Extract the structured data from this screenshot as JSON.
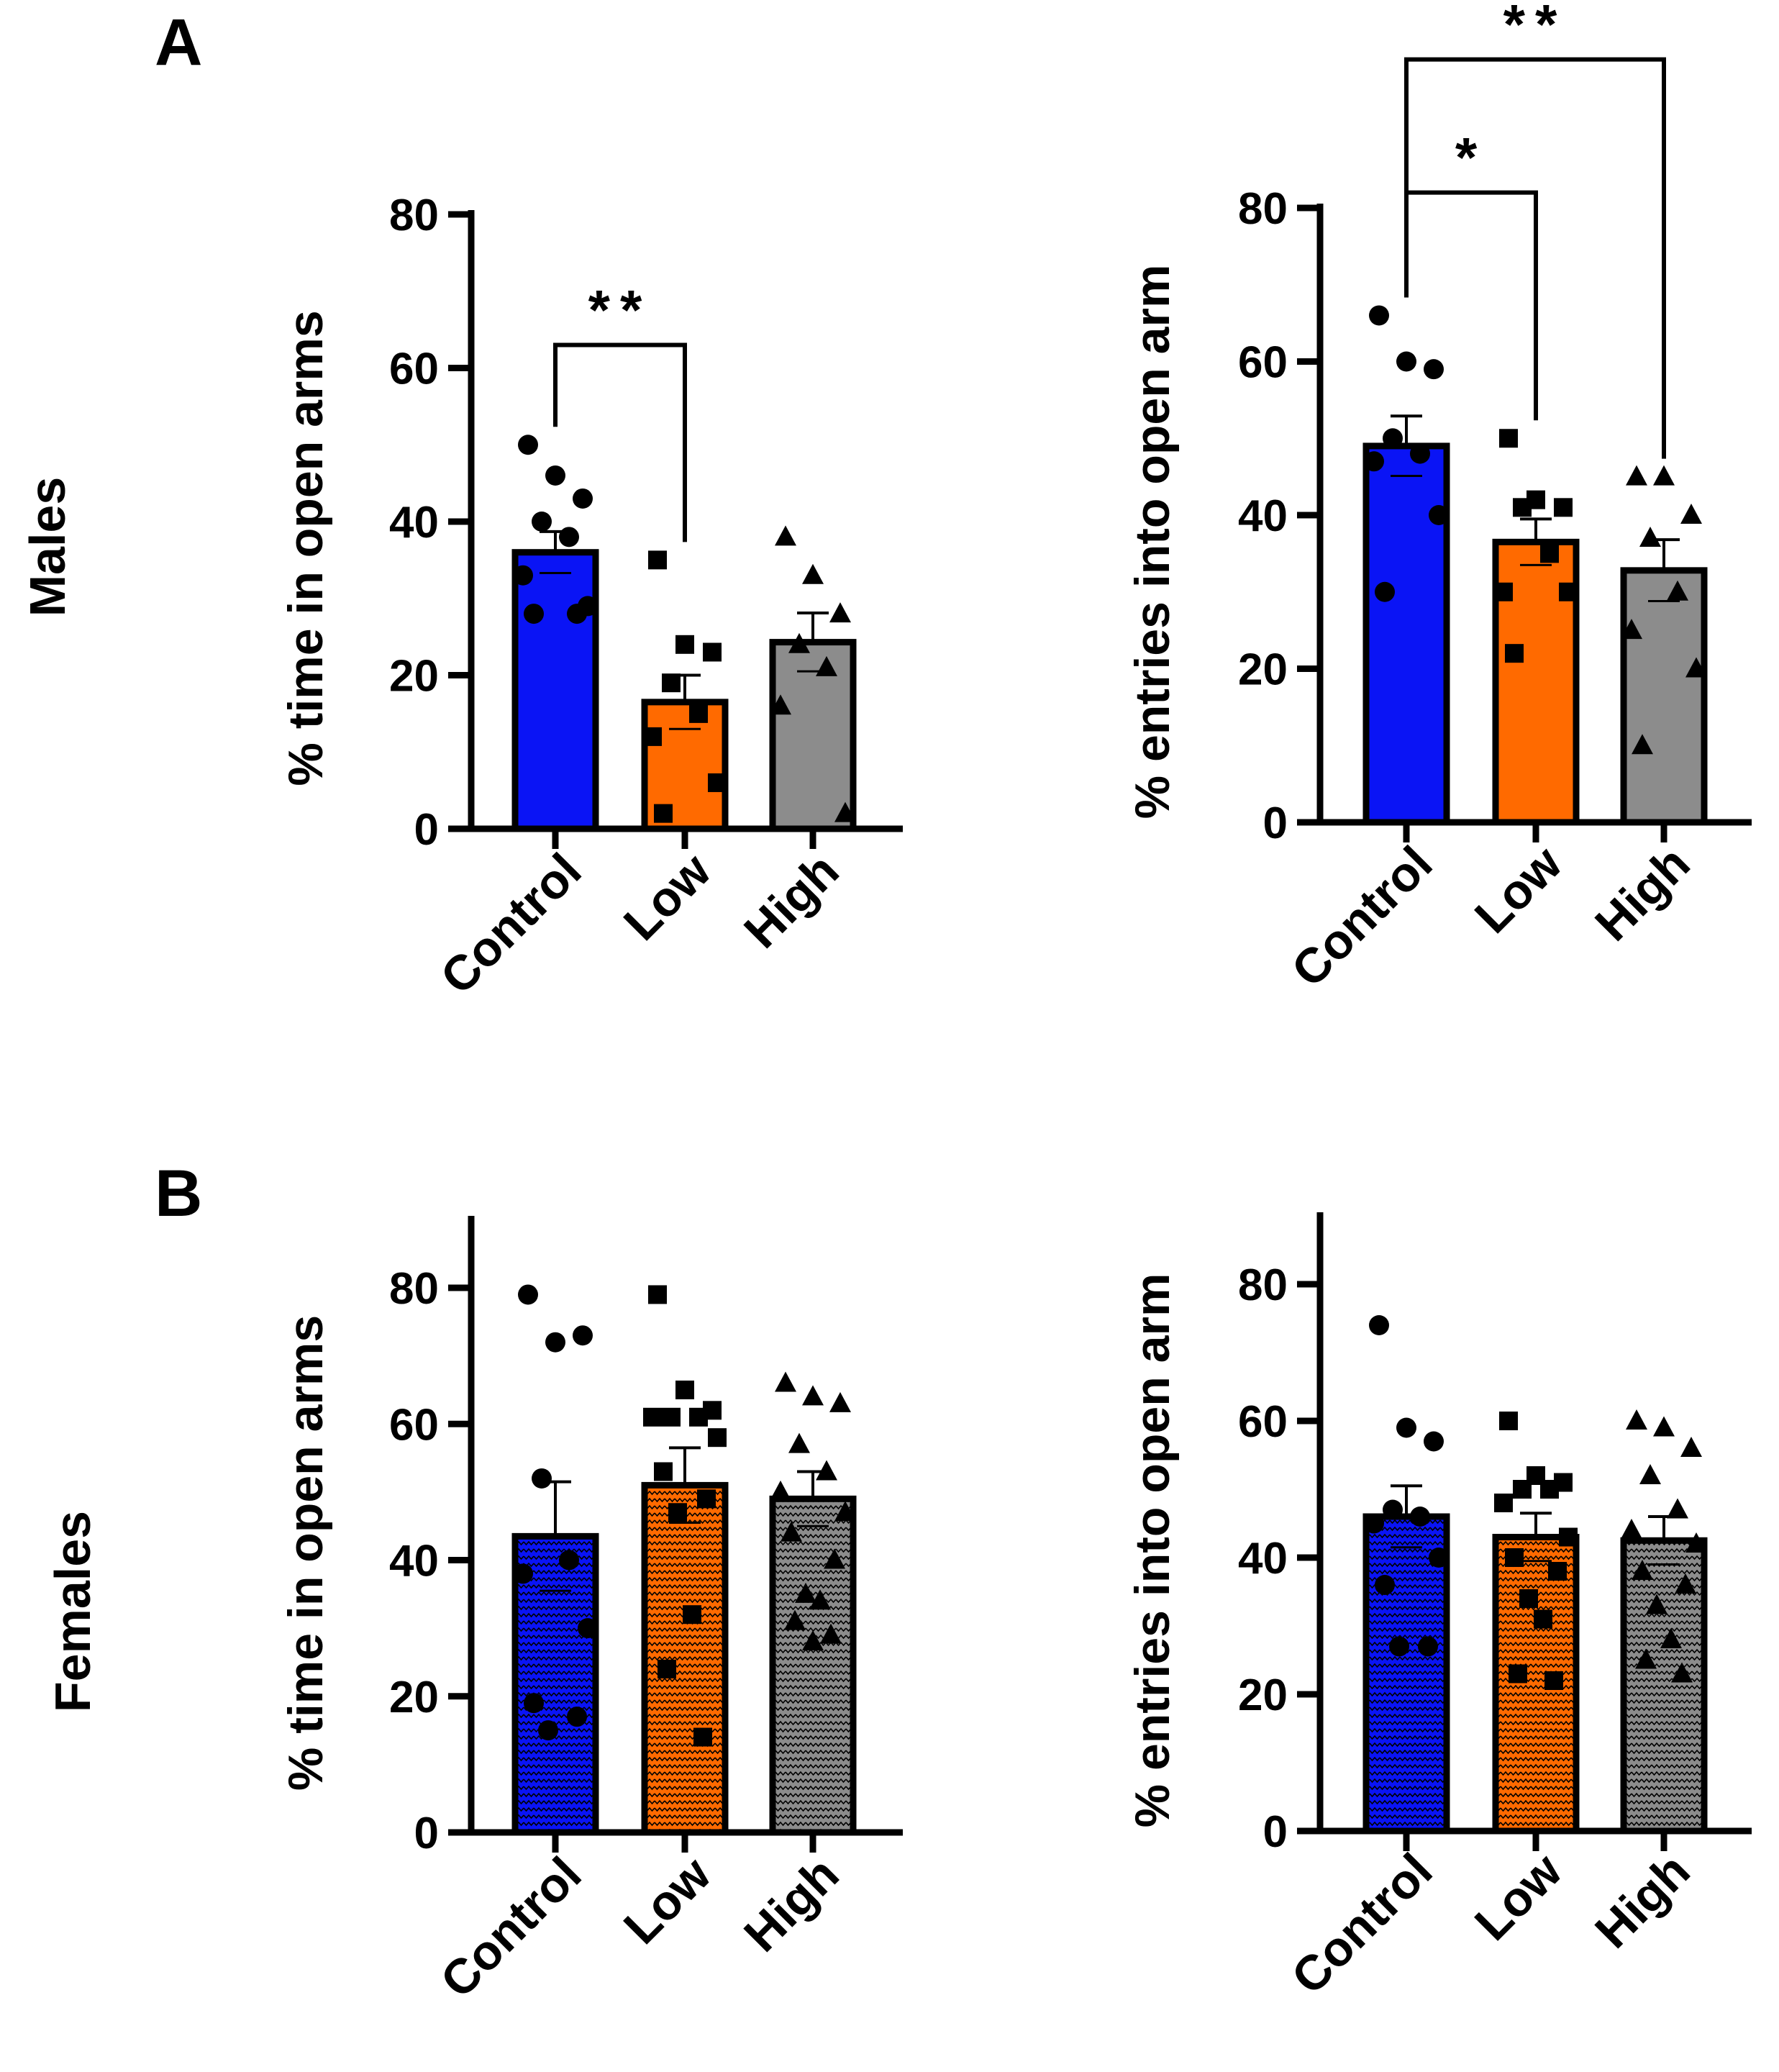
{
  "figure": {
    "panel_labels": [
      "A",
      "B"
    ],
    "row_labels": [
      "Males",
      "Females"
    ]
  },
  "colors": {
    "control": "#0a14f5",
    "low": "#ff6a00",
    "high": "#8c8c8c",
    "axis": "#000000"
  },
  "chart_data": [
    {
      "type": "bar",
      "panel": "A",
      "row": "Males",
      "title": "",
      "categories": [
        "Control",
        "Low",
        "High"
      ],
      "ylabel": "% time in open arms",
      "ylim": [
        0,
        80
      ],
      "yticks": [
        0,
        20,
        40,
        60,
        80
      ],
      "pattern": false,
      "means": [
        36,
        16.5,
        24.3
      ],
      "sem": [
        2.7,
        3.5,
        3.8
      ],
      "points": [
        [
          50,
          46,
          43,
          40,
          38,
          33,
          29,
          28,
          28
        ],
        [
          35,
          24,
          23,
          19,
          15,
          12,
          6,
          2
        ],
        [
          38,
          33,
          28,
          24,
          21,
          16,
          2
        ]
      ],
      "markers": [
        "circle",
        "square",
        "triangle"
      ],
      "significance": [
        {
          "from": "Control",
          "to": "Low",
          "label": "**"
        }
      ]
    },
    {
      "type": "bar",
      "panel": "A",
      "row": "Males",
      "title": "",
      "categories": [
        "Control",
        "Low",
        "High"
      ],
      "ylabel": "% entries into open arm",
      "ylim": [
        0,
        80
      ],
      "yticks": [
        0,
        20,
        40,
        60,
        80
      ],
      "pattern": false,
      "means": [
        49,
        36.5,
        32.8
      ],
      "sem": [
        3.9,
        3.0,
        4.0
      ],
      "points": [
        [
          66,
          60,
          59,
          50,
          48,
          47,
          40,
          30
        ],
        [
          50,
          42,
          41,
          41,
          35,
          30,
          30,
          22
        ],
        [
          45,
          45,
          40,
          37,
          30,
          25,
          20,
          10
        ]
      ],
      "markers": [
        "circle",
        "square",
        "triangle"
      ],
      "significance": [
        {
          "from": "Control",
          "to": "Low",
          "label": "*"
        },
        {
          "from": "Control",
          "to": "High",
          "label": "**"
        }
      ]
    },
    {
      "type": "bar",
      "panel": "B",
      "row": "Females",
      "title": "",
      "categories": [
        "Control",
        "Low",
        "High"
      ],
      "ylabel": "% time in open arms",
      "ylim": [
        0,
        80
      ],
      "yticks": [
        0,
        20,
        40,
        60,
        80
      ],
      "pattern": true,
      "means": [
        43.5,
        51,
        49
      ],
      "sem": [
        8,
        5.5,
        4
      ],
      "points": [
        [
          79,
          72,
          73,
          52,
          40,
          38,
          30,
          19,
          17,
          15
        ],
        [
          79,
          65,
          62,
          61,
          61,
          61,
          58,
          53,
          49,
          47,
          32,
          24,
          14
        ],
        [
          66,
          64,
          63,
          57,
          53,
          50,
          47,
          44,
          40,
          35,
          34,
          31,
          29,
          28
        ]
      ],
      "markers": [
        "circle",
        "square",
        "triangle"
      ],
      "significance": []
    },
    {
      "type": "bar",
      "panel": "B",
      "row": "Females",
      "title": "",
      "categories": [
        "Control",
        "Low",
        "High"
      ],
      "ylabel": "% entries into open arm",
      "ylim": [
        0,
        80
      ],
      "yticks": [
        0,
        20,
        40,
        60,
        80
      ],
      "pattern": true,
      "means": [
        46,
        43,
        42.5
      ],
      "sem": [
        4.5,
        3.5,
        3.5
      ],
      "points": [
        [
          74,
          59,
          57,
          47,
          46,
          45,
          40,
          36,
          27,
          27
        ],
        [
          60,
          52,
          51,
          50,
          50,
          48,
          43,
          40,
          38,
          34,
          31,
          23,
          22
        ],
        [
          60,
          59,
          56,
          52,
          47,
          44,
          42,
          38,
          36,
          33,
          28,
          25,
          23
        ]
      ],
      "markers": [
        "circle",
        "square",
        "triangle"
      ],
      "significance": []
    }
  ]
}
